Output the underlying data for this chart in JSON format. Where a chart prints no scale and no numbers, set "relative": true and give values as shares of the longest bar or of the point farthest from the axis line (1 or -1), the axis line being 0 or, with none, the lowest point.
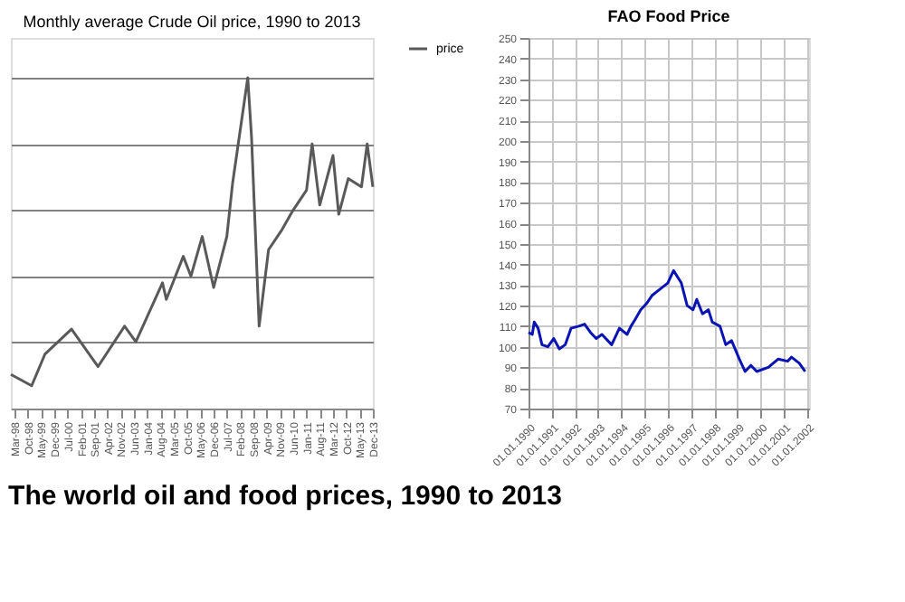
{
  "chart_data": [
    {
      "type": "line",
      "title": "Monthly average Crude Oil price, 1990 to 2013",
      "relative": true,
      "legend": "right",
      "grid": "y",
      "annotations": [
        "The world oil and food prices, 1990 to 2013"
      ],
      "x": [
        "1998-01",
        "1998-12",
        "1999-07",
        "2000-09",
        "2001-11",
        "2003-01",
        "2003-07",
        "2004-09",
        "2004-11",
        "2005-08",
        "2005-12",
        "2006-06",
        "2006-12",
        "2007-07",
        "2007-10",
        "2008-06",
        "2008-08",
        "2008-12",
        "2009-05",
        "2009-12",
        "2010-06",
        "2011-01",
        "2011-04",
        "2011-08",
        "2012-03",
        "2012-06",
        "2012-11",
        "2013-06",
        "2013-09",
        "2013-12"
      ],
      "xlim": [
        "1998-01",
        "2013-12"
      ],
      "xticks": [
        {
          "value": "1998-03",
          "label": "Mar-98"
        },
        {
          "value": "1998-10",
          "label": "Oct-98"
        },
        {
          "value": "1999-05",
          "label": "May-99"
        },
        {
          "value": "1999-12",
          "label": "Dec-99"
        },
        {
          "value": "2000-07",
          "label": "Jul-00"
        },
        {
          "value": "2001-02",
          "label": "Feb-01"
        },
        {
          "value": "2001-09",
          "label": "Sep-01"
        },
        {
          "value": "2002-04",
          "label": "Apr-02"
        },
        {
          "value": "2002-11",
          "label": "Nov-02"
        },
        {
          "value": "2003-06",
          "label": "Jun-03"
        },
        {
          "value": "2004-01",
          "label": "Jan-04"
        },
        {
          "value": "2004-08",
          "label": "Aug-04"
        },
        {
          "value": "2005-03",
          "label": "Mar-05"
        },
        {
          "value": "2005-10",
          "label": "Oct-05"
        },
        {
          "value": "2006-05",
          "label": "May-06"
        },
        {
          "value": "2006-12",
          "label": "Dec-06"
        },
        {
          "value": "2007-07",
          "label": "Jul-07"
        },
        {
          "value": "2008-02",
          "label": "Feb-08"
        },
        {
          "value": "2008-09",
          "label": "Sep-08"
        },
        {
          "value": "2009-04",
          "label": "Apr-09"
        },
        {
          "value": "2009-11",
          "label": "Nov-09"
        },
        {
          "value": "2010-06",
          "label": "Jun-10"
        },
        {
          "value": "2011-01",
          "label": "Jan-11"
        },
        {
          "value": "2011-08",
          "label": "Aug-11"
        },
        {
          "value": "2012-03",
          "label": "Mar-12"
        },
        {
          "value": "2012-10",
          "label": "Oct-12"
        },
        {
          "value": "2013-05",
          "label": "May-13"
        },
        {
          "value": "2013-12",
          "label": "Dec-13"
        }
      ],
      "series": [
        {
          "name": "price",
          "color": "#595959",
          "values": [
            0.103,
            0.069,
            0.164,
            0.24,
            0.127,
            0.249,
            0.202,
            0.38,
            0.33,
            0.46,
            0.4,
            0.52,
            0.366,
            0.52,
            0.68,
            1.0,
            0.82,
            0.249,
            0.48,
            0.54,
            0.6,
            0.66,
            0.8,
            0.615,
            0.765,
            0.587,
            0.695,
            0.67,
            0.8,
            0.67
          ]
        }
      ]
    },
    {
      "type": "line",
      "title": "FAO Food Price",
      "grid": true,
      "legend": false,
      "x": [
        "1990-01",
        "1990-03",
        "1990-04",
        "1990-06",
        "1990-08",
        "1990-11",
        "1991-02",
        "1991-05",
        "1991-08",
        "1991-11",
        "1992-03",
        "1992-06",
        "1992-09",
        "1992-12",
        "1993-03",
        "1993-08",
        "1993-12",
        "1994-04",
        "1994-06",
        "1994-08",
        "1994-11",
        "1995-02",
        "1995-05",
        "1995-09",
        "1996-01",
        "1996-04",
        "1996-08",
        "1996-11",
        "1997-02",
        "1997-04",
        "1997-07",
        "1997-10",
        "1997-12",
        "1998-04",
        "1998-07",
        "1998-10",
        "1999-02",
        "1999-05",
        "1999-08",
        "1999-11",
        "2000-05",
        "2000-10",
        "2001-03",
        "2001-05",
        "2001-09",
        "2001-12"
      ],
      "xlim": [
        "1990-01",
        "2002-02"
      ],
      "xticks": [
        {
          "value": "1990-01-01",
          "label": "01.01.1990"
        },
        {
          "value": "1991-01-01",
          "label": "01.01.1991"
        },
        {
          "value": "1992-01-01",
          "label": "01.01.1992"
        },
        {
          "value": "1993-01-01",
          "label": "01.01.1993"
        },
        {
          "value": "1994-01-01",
          "label": "01.01.1994"
        },
        {
          "value": "1995-01-01",
          "label": "01.01.1995"
        },
        {
          "value": "1996-01-01",
          "label": "01.01.1996"
        },
        {
          "value": "1997-01-01",
          "label": "01.01.1997"
        },
        {
          "value": "1998-01-01",
          "label": "01.01.1998"
        },
        {
          "value": "1999-01-01",
          "label": "01.01.1999"
        },
        {
          "value": "2000-01-01",
          "label": "01.01.2000"
        },
        {
          "value": "2001-01-01",
          "label": "01.01.2001"
        },
        {
          "value": "2002-01-01",
          "label": "01.01.2002"
        }
      ],
      "ylim": [
        70,
        250
      ],
      "yticks": [
        70,
        80,
        90,
        100,
        110,
        120,
        130,
        140,
        150,
        160,
        170,
        180,
        190,
        200,
        210,
        220,
        230,
        240,
        250
      ],
      "series": [
        {
          "color": "#0a14b4",
          "values": [
            107,
            106,
            112,
            109,
            101,
            100,
            104,
            99,
            101,
            109,
            110,
            111,
            107,
            104,
            106,
            101,
            109,
            106,
            110,
            113,
            118,
            121,
            125,
            128,
            131,
            137,
            131,
            120,
            118,
            123,
            116,
            118,
            112,
            110,
            101,
            103,
            94,
            88,
            91,
            88,
            90,
            94,
            93,
            95,
            92,
            88
          ]
        }
      ]
    }
  ]
}
